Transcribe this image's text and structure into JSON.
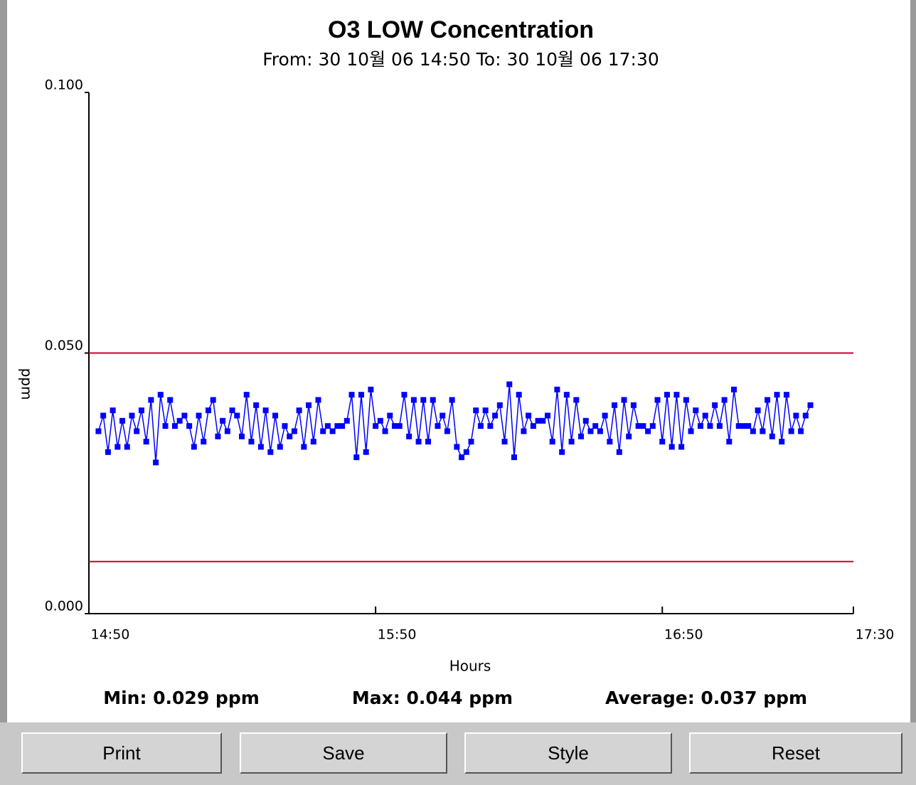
{
  "chart_data": {
    "type": "line",
    "title": "O3 LOW Concentration",
    "subtitle": "From: 30 10월 06 14:50 To: 30 10월 06 17:30",
    "y_label": "ppm",
    "x_label": "Hours",
    "color": "#0000ff",
    "limits": [
      0.05,
      0.01
    ],
    "limit_color": "#cc0033",
    "xlim": [
      890,
      1050
    ],
    "xticks": [
      {
        "value": 890,
        "label": "14:50"
      },
      {
        "value": 950,
        "label": "15:50"
      },
      {
        "value": 1010,
        "label": "16:50"
      },
      {
        "value": 1050,
        "label": "17:30"
      }
    ],
    "ylim": [
      0,
      0.1
    ],
    "yticks": [
      {
        "value": 0,
        "label": "0.000"
      },
      {
        "value": 0.05,
        "label": "0.050"
      },
      {
        "value": 0.1,
        "label": "0.100"
      }
    ],
    "x": [
      892,
      893,
      894,
      895,
      896,
      897,
      898,
      899,
      900,
      901,
      902,
      903,
      904,
      905,
      906,
      907,
      908,
      909,
      910,
      911,
      912,
      913,
      914,
      915,
      916,
      917,
      918,
      919,
      920,
      921,
      922,
      923,
      924,
      925,
      926,
      927,
      928,
      929,
      930,
      931,
      932,
      933,
      934,
      935,
      936,
      937,
      938,
      939,
      940,
      941,
      942,
      943,
      944,
      945,
      946,
      947,
      948,
      949,
      950,
      951,
      952,
      953,
      954,
      955,
      956,
      957,
      958,
      959,
      960,
      961,
      962,
      963,
      964,
      965,
      966,
      967,
      968,
      969,
      970,
      971,
      972,
      973,
      974,
      975,
      976,
      977,
      978,
      979,
      980,
      981,
      982,
      983,
      984,
      985,
      986,
      987,
      988,
      989,
      990,
      991,
      992,
      993,
      994,
      995,
      996,
      997,
      998,
      999,
      1000,
      1001,
      1002,
      1003,
      1004,
      1005,
      1006,
      1007,
      1008,
      1009,
      1010,
      1011,
      1012,
      1013,
      1014,
      1015,
      1016,
      1017,
      1018,
      1019,
      1020,
      1021,
      1022,
      1023,
      1024,
      1025,
      1026,
      1027,
      1028,
      1029,
      1030,
      1031,
      1032,
      1033,
      1034,
      1035,
      1036,
      1037,
      1038,
      1039,
      1040,
      1041
    ],
    "values": [
      0.035,
      0.038,
      0.031,
      0.039,
      0.032,
      0.037,
      0.032,
      0.038,
      0.035,
      0.039,
      0.033,
      0.041,
      0.029,
      0.042,
      0.036,
      0.041,
      0.036,
      0.037,
      0.038,
      0.036,
      0.032,
      0.038,
      0.033,
      0.039,
      0.041,
      0.034,
      0.037,
      0.035,
      0.039,
      0.038,
      0.034,
      0.042,
      0.033,
      0.04,
      0.032,
      0.039,
      0.031,
      0.038,
      0.032,
      0.036,
      0.034,
      0.035,
      0.039,
      0.032,
      0.04,
      0.033,
      0.041,
      0.035,
      0.036,
      0.035,
      0.036,
      0.036,
      0.037,
      0.042,
      0.03,
      0.042,
      0.031,
      0.043,
      0.036,
      0.037,
      0.035,
      0.038,
      0.036,
      0.036,
      0.042,
      0.034,
      0.041,
      0.033,
      0.041,
      0.033,
      0.041,
      0.036,
      0.038,
      0.035,
      0.041,
      0.032,
      0.03,
      0.031,
      0.033,
      0.039,
      0.036,
      0.039,
      0.036,
      0.038,
      0.04,
      0.033,
      0.044,
      0.03,
      0.042,
      0.035,
      0.038,
      0.036,
      0.037,
      0.037,
      0.038,
      0.033,
      0.043,
      0.031,
      0.042,
      0.033,
      0.041,
      0.034,
      0.037,
      0.035,
      0.036,
      0.035,
      0.038,
      0.033,
      0.04,
      0.031,
      0.041,
      0.034,
      0.04,
      0.036,
      0.036,
      0.035,
      0.036,
      0.041,
      0.033,
      0.042,
      0.032,
      0.042,
      0.032,
      0.041,
      0.035,
      0.039,
      0.036,
      0.038,
      0.036,
      0.04,
      0.036,
      0.041,
      0.033,
      0.043,
      0.036,
      0.036,
      0.036,
      0.035,
      0.039,
      0.035,
      0.041,
      0.034,
      0.042,
      0.033,
      0.042,
      0.035,
      0.038,
      0.035,
      0.038,
      0.04
    ]
  },
  "stats": [
    "Min: 0.029 ppm",
    "Max: 0.044 ppm",
    "Average: 0.037 ppm"
  ],
  "buttons": [
    "Print",
    "Save",
    "Style",
    "Reset"
  ]
}
